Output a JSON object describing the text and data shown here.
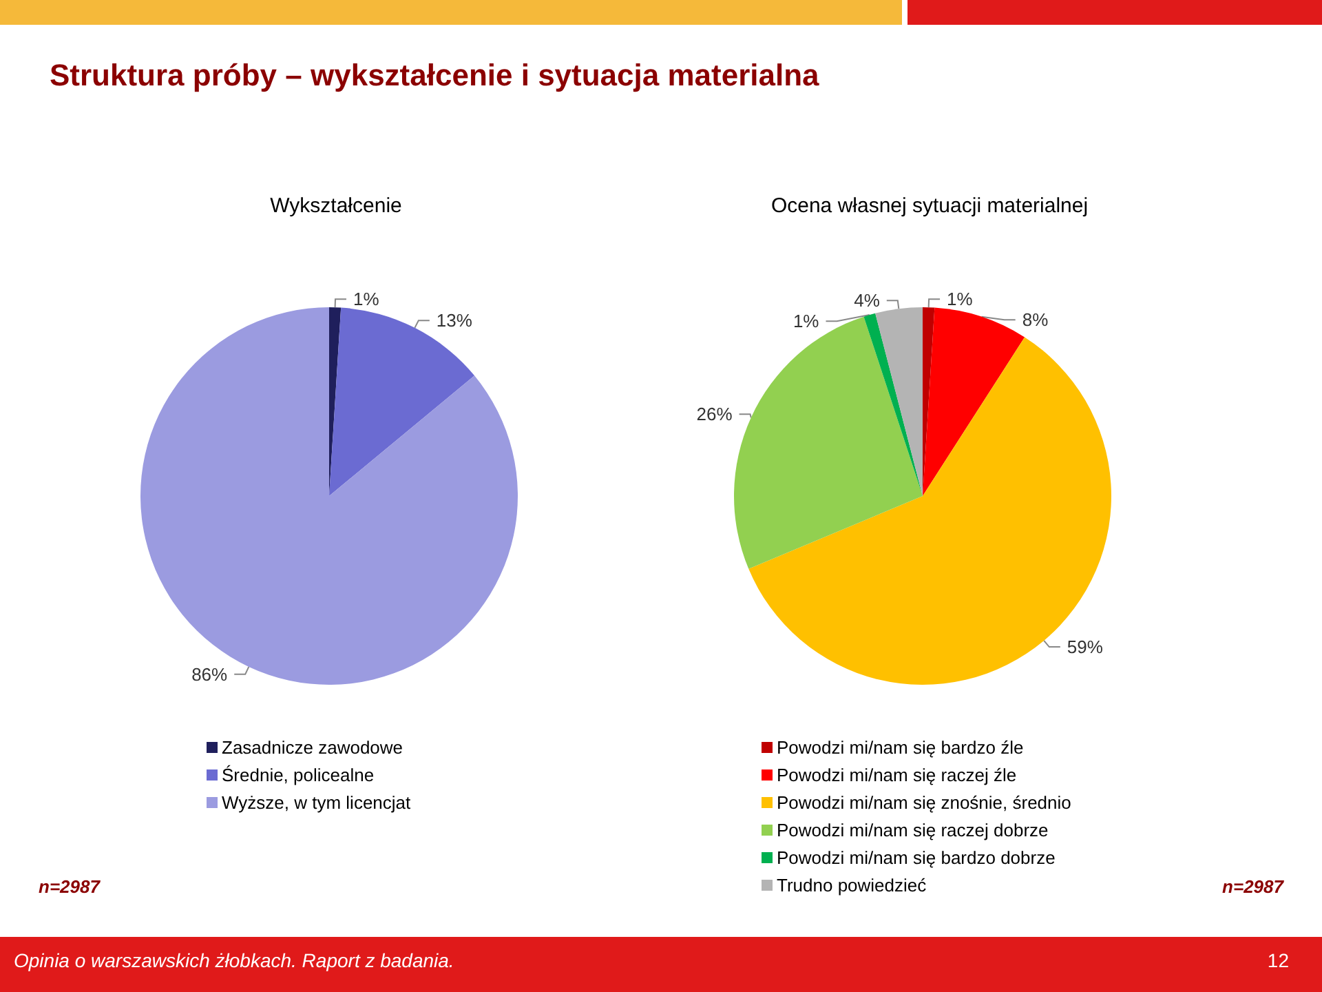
{
  "chart_data": [
    {
      "type": "pie",
      "title": "Wykształcenie",
      "categories": [
        "Zasadnicze zawodowe",
        "Średnie, policealne",
        "Wyższe, w tym licencjat"
      ],
      "values": [
        1,
        13,
        86
      ],
      "value_labels": [
        "1%",
        "13%",
        "86%"
      ],
      "colors": [
        "#1f1f5c",
        "#6b6bd2",
        "#9b9be0"
      ],
      "legend": "bottom",
      "annotations": [
        "Struktura próby – wykształcenie i sytuacja materialna",
        "n=2987"
      ]
    },
    {
      "type": "pie",
      "title": "Ocena własnej sytuacji materialnej",
      "categories": [
        "Powodzi mi/nam się bardzo źle",
        "Powodzi mi/nam się raczej źle",
        "Powodzi mi/nam się znośnie, średnio",
        "Powodzi mi/nam się raczej dobrze",
        "Powodzi mi/nam się bardzo dobrze",
        "Trudno powiedzieć"
      ],
      "values": [
        1,
        8,
        59,
        26,
        1,
        4
      ],
      "value_labels": [
        "1%",
        "8%",
        "59%",
        "26%",
        "1%",
        "4%"
      ],
      "colors": [
        "#c00000",
        "#ff0000",
        "#ffc000",
        "#92d050",
        "#00b050",
        "#b4b4b4"
      ],
      "legend": "bottom",
      "annotations": [
        "n=2987",
        "Opinia o warszawskich żłobkach. Raport z badania.",
        "12"
      ]
    }
  ]
}
